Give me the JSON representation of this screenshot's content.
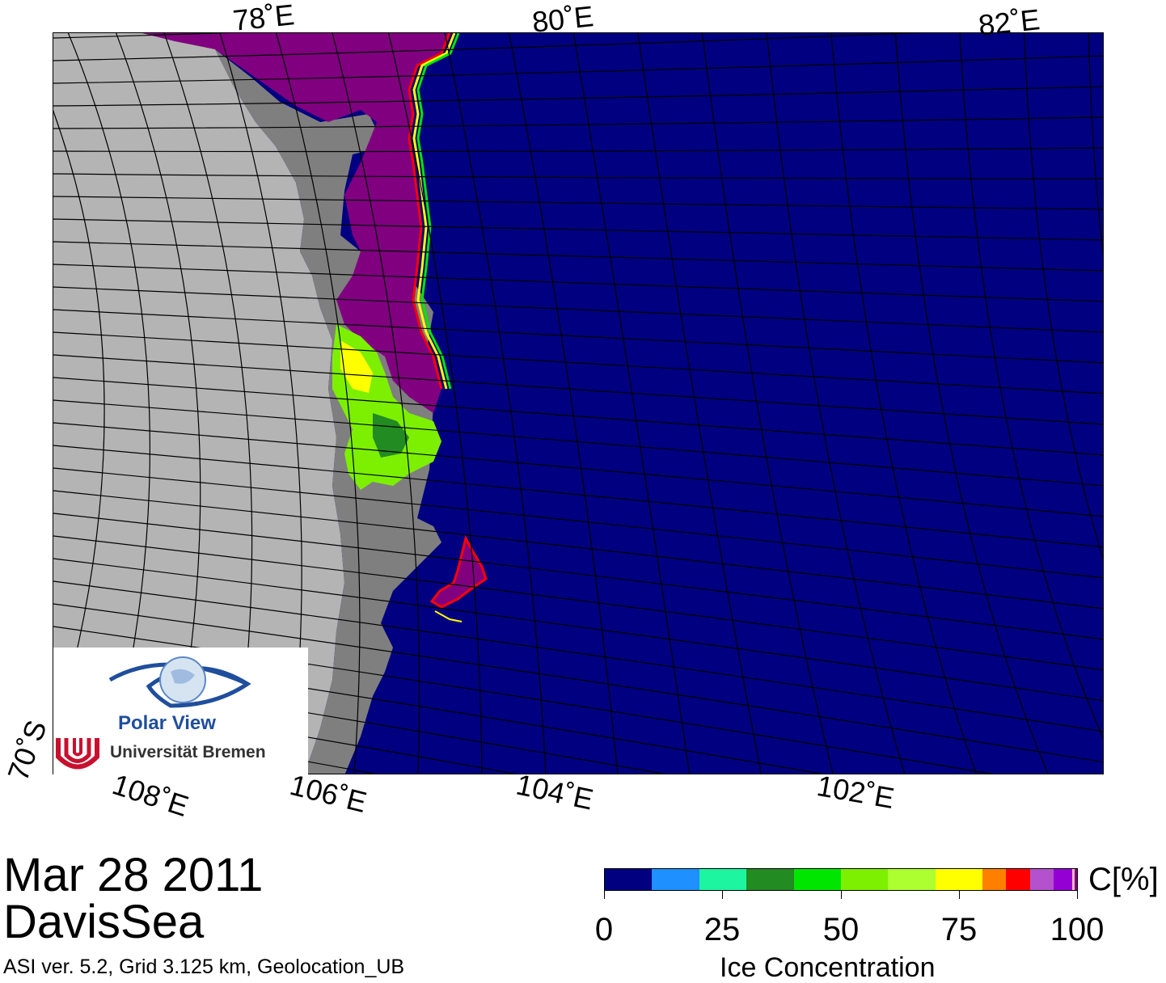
{
  "map": {
    "top_labels": [
      "78˚E",
      "80˚E",
      "82˚E"
    ],
    "bottom_labels": [
      "108˚E",
      "106˚E",
      "104˚E",
      "102˚E"
    ],
    "lat_label": "70˚S",
    "colors": {
      "ocean": "#000080",
      "land_ice": "#b4b4b4",
      "ice_shelf": "#7f7f7f",
      "dense_ice": "#800080",
      "grid": "#000000"
    }
  },
  "logo": {
    "title": "Polar View",
    "institution": "Universität Bremen"
  },
  "title": {
    "date": "Mar 28 2011",
    "region": "DavisSea",
    "info": "ASI ver. 5.2,  Grid 3.125 km, Geolocation_UB"
  },
  "colorbar": {
    "unit": "C[%]",
    "title": "Ice Concentration",
    "tick_labels": [
      "0",
      "25",
      "50",
      "75",
      "100"
    ],
    "colors": [
      "#000080",
      "#1e90ff",
      "#1ef5a0",
      "#228b22",
      "#00e600",
      "#7cf000",
      "#adff2f",
      "#ffff00",
      "#ff7f00",
      "#ff0000",
      "#b452cd",
      "#9400d3",
      "#ffb6c1",
      "#800080"
    ],
    "bin_widths": [
      10,
      10,
      10,
      10,
      10,
      10,
      10,
      10,
      5,
      5,
      5,
      4,
      0.5,
      0.5
    ]
  }
}
